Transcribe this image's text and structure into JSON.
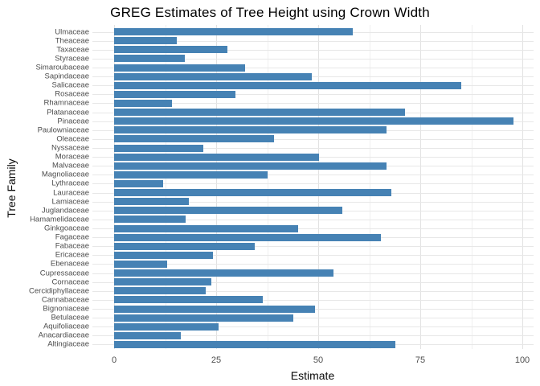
{
  "title": "GREG Estimates of Tree Height using Crown Width",
  "chart_data": {
    "type": "bar",
    "orientation": "horizontal",
    "title": "GREG Estimates of Tree Height using Crown Width",
    "xlabel": "Estimate",
    "ylabel": "Tree Family",
    "xlim": [
      0,
      103
    ],
    "x_ticks": [
      0,
      25,
      50,
      75,
      100
    ],
    "x_minor_ticks": [
      12.5,
      37.5,
      62.5,
      87.5
    ],
    "grid": "on",
    "legend": "none",
    "bar_color": "#4682B4",
    "grid_major_color": "#e2e2e2",
    "grid_minor_color": "#f0f0f0",
    "axis_text_color": "#4d4d4d",
    "categories": [
      "Ulmaceae",
      "Theaceae",
      "Taxaceae",
      "Styraceae",
      "Simaroubaceae",
      "Sapindaceae",
      "Salicaceae",
      "Rosaceae",
      "Rhamnaceae",
      "Platanaceae",
      "Pinaceae",
      "Paulowniaceae",
      "Oleaceae",
      "Nyssaceae",
      "Moraceae",
      "Malvaceae",
      "Magnoliaceae",
      "Lythraceae",
      "Lauraceae",
      "Lamiaceae",
      "Juglandaceae",
      "Hamamelidaceae",
      "Ginkgoaceae",
      "Fagaceae",
      "Fabaceae",
      "Ericaceae",
      "Ebenaceae",
      "Cupressaceae",
      "Cornaceae",
      "Cercidiphyllaceae",
      "Cannabaceae",
      "Bignoniaceae",
      "Betulaceae",
      "Aquifoliaceae",
      "Anacardiaceae",
      "Altingiaceae"
    ],
    "values": [
      58.5,
      15.4,
      27.8,
      17.3,
      32.1,
      48.4,
      85.0,
      29.8,
      14.2,
      71.3,
      97.8,
      66.7,
      39.1,
      21.8,
      50.1,
      66.7,
      37.6,
      11.9,
      67.9,
      18.3,
      55.9,
      17.5,
      45.1,
      65.3,
      34.4,
      24.2,
      12.9,
      53.7,
      23.8,
      22.4,
      36.4,
      49.3,
      43.9,
      25.6,
      16.3,
      68.8
    ]
  }
}
